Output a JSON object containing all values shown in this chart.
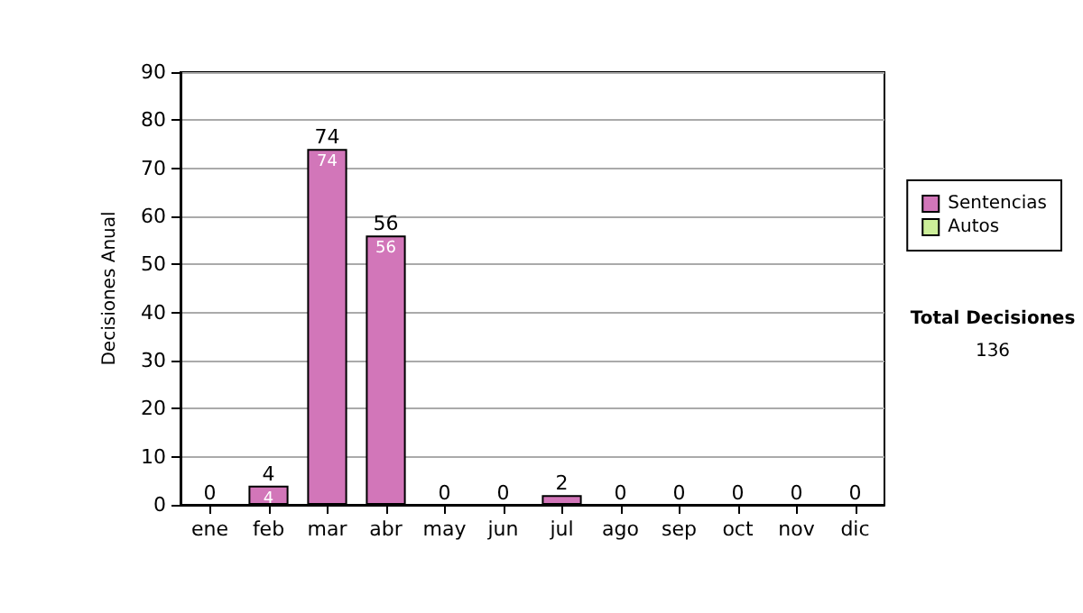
{
  "chart_data": {
    "type": "bar",
    "ylabel": "Decisiones Anual",
    "categories": [
      "ene",
      "feb",
      "mar",
      "abr",
      "may",
      "jun",
      "jul",
      "ago",
      "sep",
      "oct",
      "nov",
      "dic"
    ],
    "stacked": true,
    "series": [
      {
        "name": "Sentencias",
        "color": "#d276b9",
        "values": [
          0,
          4,
          74,
          56,
          0,
          0,
          2,
          0,
          0,
          0,
          0,
          0
        ],
        "value_labels": [
          null,
          "4",
          "74",
          "56",
          null,
          null,
          null,
          null,
          null,
          null,
          null,
          null
        ]
      },
      {
        "name": "Autos",
        "color": "#ccee99",
        "values": [
          0,
          0,
          0,
          0,
          0,
          0,
          0,
          0,
          0,
          0,
          0,
          0
        ]
      }
    ],
    "totals": [
      "0",
      "4",
      "74",
      "56",
      "0",
      "0",
      "2",
      "0",
      "0",
      "0",
      "0",
      "0"
    ],
    "ylim": [
      0,
      90
    ],
    "yticks": [
      0,
      10,
      20,
      30,
      40,
      50,
      60,
      70,
      80,
      90
    ],
    "grid": "y",
    "legend": "right",
    "annotations": [
      "Total Decisiones",
      "136"
    ]
  }
}
